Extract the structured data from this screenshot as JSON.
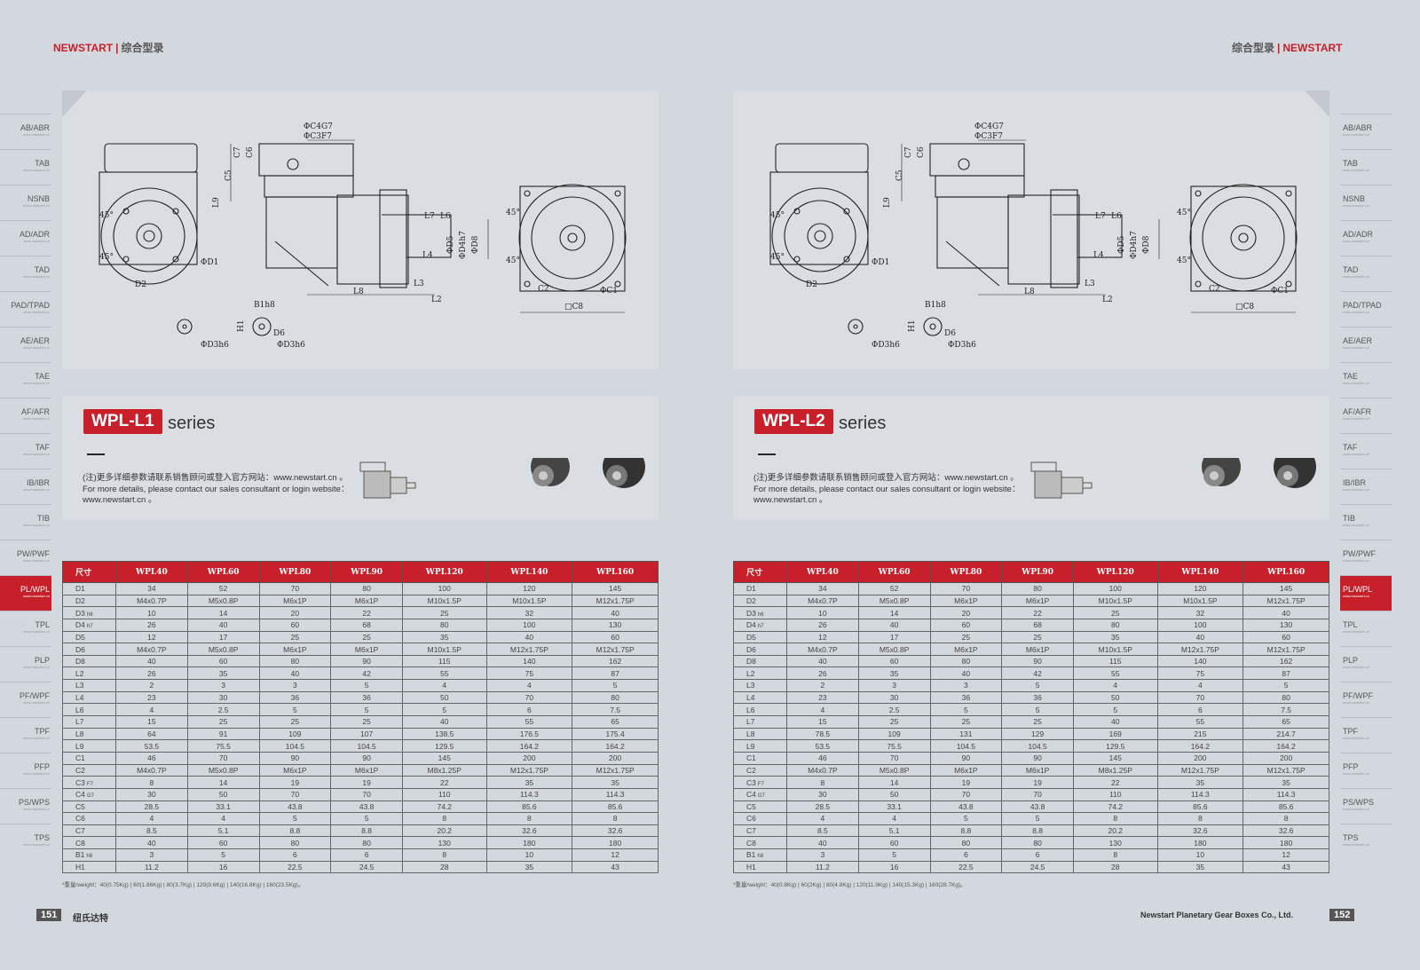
{
  "left_page": {
    "header": {
      "brand": "NEWSTART",
      "separator": "|",
      "catalog": "综合型录"
    },
    "series_badge": "WPL-L1",
    "series_word": "series",
    "note_cn": "(注)更多详细参数请联系销售顾问或登入官方网站：www.newstart.cn 。",
    "note_en": "For more details, please contact our sales consultant or login website：www.newstart.cn 。",
    "weight_note": "*重量/weight：40(0.75Kg) | 60(1.86Kg) | 80(3.7Kg) | 120(9.6Kg) | 140(16.8Kg) | 160(23.5Kg)。",
    "page_number": "151",
    "footer_text": "纽氏达特",
    "table": {
      "headers": [
        "尺寸",
        "WPL40",
        "WPL60",
        "WPL80",
        "WPL90",
        "WPL120",
        "WPL140",
        "WPL160"
      ],
      "rows": [
        {
          "label": "D1",
          "tol": "",
          "values": [
            "34",
            "52",
            "70",
            "80",
            "100",
            "120",
            "145"
          ]
        },
        {
          "label": "D2",
          "tol": "",
          "values": [
            "M4x0.7P",
            "M5x0.8P",
            "M6x1P",
            "M6x1P",
            "M10x1.5P",
            "M10x1.5P",
            "M12x1.75P"
          ]
        },
        {
          "label": "D3",
          "tol": "h6",
          "values": [
            "10",
            "14",
            "20",
            "22",
            "25",
            "32",
            "40"
          ]
        },
        {
          "label": "D4",
          "tol": "h7",
          "values": [
            "26",
            "40",
            "60",
            "68",
            "80",
            "100",
            "130"
          ]
        },
        {
          "label": "D5",
          "tol": "",
          "values": [
            "12",
            "17",
            "25",
            "25",
            "35",
            "40",
            "60"
          ]
        },
        {
          "label": "D6",
          "tol": "",
          "values": [
            "M4x0.7P",
            "M5x0.8P",
            "M6x1P",
            "M6x1P",
            "M10x1.5P",
            "M12x1.75P",
            "M12x1.75P"
          ]
        },
        {
          "label": "D8",
          "tol": "",
          "values": [
            "40",
            "60",
            "80",
            "90",
            "115",
            "140",
            "162"
          ]
        },
        {
          "label": "L2",
          "tol": "",
          "values": [
            "26",
            "35",
            "40",
            "42",
            "55",
            "75",
            "87"
          ]
        },
        {
          "label": "L3",
          "tol": "",
          "values": [
            "2",
            "3",
            "3",
            "5",
            "4",
            "4",
            "5"
          ]
        },
        {
          "label": "L4",
          "tol": "",
          "values": [
            "23",
            "30",
            "36",
            "36",
            "50",
            "70",
            "80"
          ]
        },
        {
          "label": "L6",
          "tol": "",
          "values": [
            "4",
            "2.5",
            "5",
            "5",
            "5",
            "6",
            "7.5"
          ]
        },
        {
          "label": "L7",
          "tol": "",
          "values": [
            "15",
            "25",
            "25",
            "25",
            "40",
            "55",
            "65"
          ]
        },
        {
          "label": "L8",
          "tol": "",
          "values": [
            "64",
            "91",
            "109",
            "107",
            "138.5",
            "176.5",
            "175.4"
          ]
        },
        {
          "label": "L9",
          "tol": "",
          "values": [
            "53.5",
            "75.5",
            "104.5",
            "104.5",
            "129.5",
            "164.2",
            "164.2"
          ]
        },
        {
          "label": "C1",
          "tol": "",
          "values": [
            "46",
            "70",
            "90",
            "90",
            "145",
            "200",
            "200"
          ]
        },
        {
          "label": "C2",
          "tol": "",
          "values": [
            "M4x0.7P",
            "M5x0.8P",
            "M6x1P",
            "M6x1P",
            "M8x1.25P",
            "M12x1.75P",
            "M12x1.75P"
          ]
        },
        {
          "label": "C3",
          "tol": "F7",
          "values": [
            "8",
            "14",
            "19",
            "19",
            "22",
            "35",
            "35"
          ]
        },
        {
          "label": "C4",
          "tol": "G7",
          "values": [
            "30",
            "50",
            "70",
            "70",
            "110",
            "114.3",
            "114.3"
          ]
        },
        {
          "label": "C5",
          "tol": "",
          "values": [
            "28.5",
            "33.1",
            "43.8",
            "43.8",
            "74.2",
            "85.6",
            "85.6"
          ]
        },
        {
          "label": "C6",
          "tol": "",
          "values": [
            "4",
            "4",
            "5",
            "5",
            "8",
            "8",
            "8"
          ]
        },
        {
          "label": "C7",
          "tol": "",
          "values": [
            "8.5",
            "5.1",
            "8.8",
            "8.8",
            "20.2",
            "32.6",
            "32.6"
          ]
        },
        {
          "label": "C8",
          "tol": "",
          "values": [
            "40",
            "60",
            "80",
            "80",
            "130",
            "180",
            "180"
          ]
        },
        {
          "label": "B1",
          "tol": "h8",
          "values": [
            "3",
            "5",
            "6",
            "6",
            "8",
            "10",
            "12"
          ]
        },
        {
          "label": "H1",
          "tol": "",
          "values": [
            "11.2",
            "16",
            "22.5",
            "24.5",
            "28",
            "35",
            "43"
          ]
        }
      ]
    },
    "drawing_labels": [
      "ΦC4G7",
      "ΦC3F7",
      "C7",
      "C6",
      "C5",
      "L9",
      "45°",
      "45°",
      "ΦD1",
      "D2",
      "L7",
      "L6",
      "ΦD5",
      "ΦD4h7",
      "ΦD8",
      "L4",
      "L3",
      "L2",
      "L8",
      "45°",
      "45°",
      "C2",
      "ΦC1",
      "□C8",
      "B1h8",
      "H1",
      "D6",
      "ΦD3h6",
      "ΦD3h6"
    ]
  },
  "right_page": {
    "header": {
      "brand": "NEWSTART",
      "separator": "|",
      "catalog": "综合型录"
    },
    "series_badge": "WPL-L2",
    "series_word": "series",
    "note_cn": "(注)更多详细参数请联系销售顾问或登入官方网站：www.newstart.cn 。",
    "note_en": "For more details, please contact our sales consultant or login website：www.newstart.cn 。",
    "weight_note": "*重量/weight：40(0.8Kg) | 60(2Kg) | 80(4.8Kg) | 120(11.9Kg) | 140(15.3Kg) | 160(28.7Kg)。",
    "page_number": "152",
    "footer_text": "Newstart Planetary Gear Boxes Co., Ltd.",
    "table": {
      "headers": [
        "尺寸",
        "WPL40",
        "WPL60",
        "WPL80",
        "WPL90",
        "WPL120",
        "WPL140",
        "WPL160"
      ],
      "rows": [
        {
          "label": "D1",
          "tol": "",
          "values": [
            "34",
            "52",
            "70",
            "80",
            "100",
            "120",
            "145"
          ]
        },
        {
          "label": "D2",
          "tol": "",
          "values": [
            "M4x0.7P",
            "M5x0.8P",
            "M6x1P",
            "M6x1P",
            "M10x1.5P",
            "M10x1.5P",
            "M12x1.75P"
          ]
        },
        {
          "label": "D3",
          "tol": "h6",
          "values": [
            "10",
            "14",
            "20",
            "22",
            "25",
            "32",
            "40"
          ]
        },
        {
          "label": "D4",
          "tol": "h7",
          "values": [
            "26",
            "40",
            "60",
            "68",
            "80",
            "100",
            "130"
          ]
        },
        {
          "label": "D5",
          "tol": "",
          "values": [
            "12",
            "17",
            "25",
            "25",
            "35",
            "40",
            "60"
          ]
        },
        {
          "label": "D6",
          "tol": "",
          "values": [
            "M4x0.7P",
            "M5x0.8P",
            "M6x1P",
            "M6x1P",
            "M10x1.5P",
            "M12x1.75P",
            "M12x1.75P"
          ]
        },
        {
          "label": "D8",
          "tol": "",
          "values": [
            "40",
            "60",
            "80",
            "90",
            "115",
            "140",
            "162"
          ]
        },
        {
          "label": "L2",
          "tol": "",
          "values": [
            "26",
            "35",
            "40",
            "42",
            "55",
            "75",
            "87"
          ]
        },
        {
          "label": "L3",
          "tol": "",
          "values": [
            "2",
            "3",
            "3",
            "5",
            "4",
            "4",
            "5"
          ]
        },
        {
          "label": "L4",
          "tol": "",
          "values": [
            "23",
            "30",
            "36",
            "36",
            "50",
            "70",
            "80"
          ]
        },
        {
          "label": "L6",
          "tol": "",
          "values": [
            "4",
            "2.5",
            "5",
            "5",
            "5",
            "6",
            "7.5"
          ]
        },
        {
          "label": "L7",
          "tol": "",
          "values": [
            "15",
            "25",
            "25",
            "25",
            "40",
            "55",
            "65"
          ]
        },
        {
          "label": "L8",
          "tol": "",
          "values": [
            "78.5",
            "109",
            "131",
            "129",
            "169",
            "215",
            "214.7"
          ]
        },
        {
          "label": "L9",
          "tol": "",
          "values": [
            "53.5",
            "75.5",
            "104.5",
            "104.5",
            "129.5",
            "164.2",
            "164.2"
          ]
        },
        {
          "label": "C1",
          "tol": "",
          "values": [
            "46",
            "70",
            "90",
            "90",
            "145",
            "200",
            "200"
          ]
        },
        {
          "label": "C2",
          "tol": "",
          "values": [
            "M4x0.7P",
            "M5x0.8P",
            "M6x1P",
            "M6x1P",
            "M8x1.25P",
            "M12x1.75P",
            "M12x1.75P"
          ]
        },
        {
          "label": "C3",
          "tol": "F7",
          "values": [
            "8",
            "14",
            "19",
            "19",
            "22",
            "35",
            "35"
          ]
        },
        {
          "label": "C4",
          "tol": "G7",
          "values": [
            "30",
            "50",
            "70",
            "70",
            "110",
            "114.3",
            "114.3"
          ]
        },
        {
          "label": "C5",
          "tol": "",
          "values": [
            "28.5",
            "33.1",
            "43.8",
            "43.8",
            "74.2",
            "85.6",
            "85.6"
          ]
        },
        {
          "label": "C6",
          "tol": "",
          "values": [
            "4",
            "4",
            "5",
            "5",
            "8",
            "8",
            "8"
          ]
        },
        {
          "label": "C7",
          "tol": "",
          "values": [
            "8.5",
            "5.1",
            "8.8",
            "8.8",
            "20.2",
            "32.6",
            "32.6"
          ]
        },
        {
          "label": "C8",
          "tol": "",
          "values": [
            "40",
            "60",
            "80",
            "80",
            "130",
            "180",
            "180"
          ]
        },
        {
          "label": "B1",
          "tol": "h8",
          "values": [
            "3",
            "5",
            "6",
            "6",
            "8",
            "10",
            "12"
          ]
        },
        {
          "label": "H1",
          "tol": "",
          "values": [
            "11.2",
            "16",
            "22.5",
            "24.5",
            "28",
            "35",
            "43"
          ]
        }
      ]
    },
    "drawing_labels": [
      "ΦC4G7",
      "ΦC3F7",
      "C7",
      "C6",
      "C5",
      "L9",
      "45°",
      "45°",
      "ΦD1",
      "D2",
      "L7",
      "L6",
      "ΦD5",
      "ΦD4h7",
      "ΦD8",
      "L4",
      "L3",
      "L2",
      "L8",
      "45°",
      "45°",
      "C2",
      "ΦC1",
      "□C8",
      "B1h8",
      "H1",
      "D6",
      "ΦD3h6",
      "ΦD3h6"
    ]
  },
  "side_tabs": {
    "url": "www.newstart.cn",
    "active": "PL/WPL",
    "items": [
      "AB/ABR",
      "TAB",
      "NSNB",
      "AD/ADR",
      "TAD",
      "PAD/TPAD",
      "AE/AER",
      "TAE",
      "AF/AFR",
      "TAF",
      "IB/IBR",
      "TIB",
      "PW/PWF",
      "PL/WPL",
      "TPL",
      "PLP",
      "PF/WPF",
      "TPF",
      "PFP",
      "PS/WPS",
      "TPS"
    ]
  },
  "colors": {
    "accent": "#c8202a",
    "background": "#d3d8de"
  }
}
